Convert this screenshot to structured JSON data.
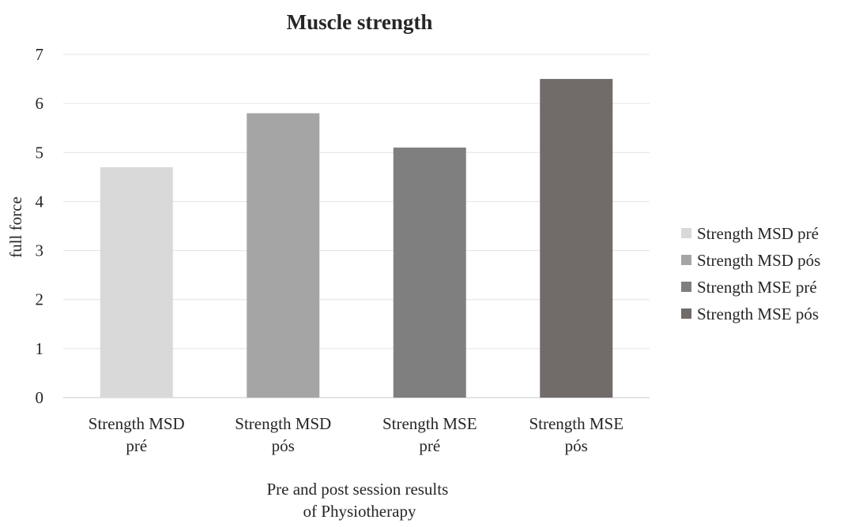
{
  "chart_data": {
    "type": "bar",
    "title": "Muscle strength",
    "xlabel": [
      "Pre and post session results",
      "of Physiotherapy"
    ],
    "ylabel": "full force",
    "ylim": [
      0,
      7
    ],
    "yticks": [
      "0",
      "1",
      "2",
      "3",
      "4",
      "5",
      "6",
      "7"
    ],
    "grid": true,
    "legend_position": "right",
    "categories": [
      [
        "Strength MSD",
        "pré"
      ],
      [
        "Strength MSD",
        "pós"
      ],
      [
        "Strength MSE",
        "pré"
      ],
      [
        "Strength MSE",
        "pós"
      ]
    ],
    "series": [
      {
        "name": "Strength MSD pré",
        "value": 4.7,
        "color": "#d9d9d9"
      },
      {
        "name": "Strength MSD pós",
        "value": 5.8,
        "color": "#a5a5a5"
      },
      {
        "name": "Strength MSE pré",
        "value": 5.1,
        "color": "#7f7f7f"
      },
      {
        "name": "Strength MSE pós",
        "value": 6.5,
        "color": "#716b6a"
      }
    ]
  }
}
